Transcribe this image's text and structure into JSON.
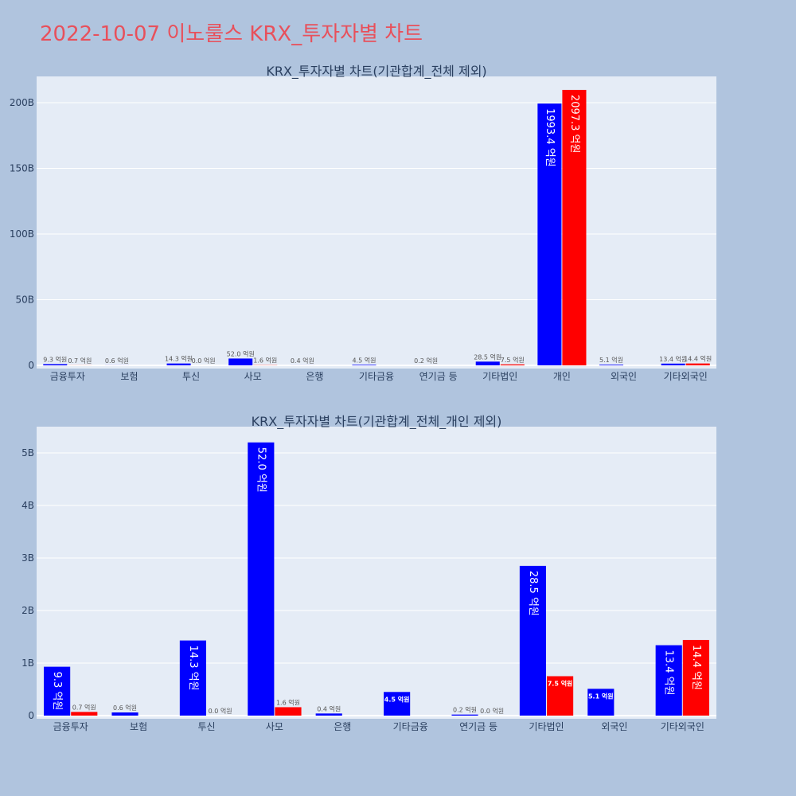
{
  "page": {
    "title": "2022-10-07 이노룰스 KRX_투자자별 차트"
  },
  "colors": {
    "background": "#b0c4de",
    "plot_bg": "#e5ecf6",
    "buy": "#0000ff",
    "sell": "#ff0000",
    "title": "#e8505b"
  },
  "chart_data": [
    {
      "type": "bar",
      "title": "KRX_투자자별 차트(기관합계_전체 제외)",
      "categories": [
        "금융투자",
        "보험",
        "투신",
        "사모",
        "은행",
        "기타금융",
        "연기금 등",
        "기타법인",
        "개인",
        "외국인",
        "기타외국인"
      ],
      "series": [
        {
          "color": "#0000ff",
          "values": [
            0.93,
            0.06,
            1.43,
            5.2,
            0.04,
            0.45,
            0.02,
            2.85,
            199.34,
            0.51,
            1.34
          ],
          "labels": [
            "9.3 억원",
            "0.6 억원",
            "14.3 억원",
            "52.0 억원",
            "0.4 억원",
            "4.5 억원",
            "0.2 억원",
            "28.5 억원",
            "1993.4 억원",
            "5.1 억원",
            "13.4 억원"
          ]
        },
        {
          "color": "#ff0000",
          "values": [
            0.07,
            null,
            0.0,
            0.16,
            null,
            null,
            null,
            0.75,
            209.73,
            null,
            1.44
          ],
          "labels": [
            "0.7 억원",
            "",
            "0.0 억원",
            "1.6 억원",
            "",
            "",
            "",
            "7.5 억원",
            "2097.3 억원",
            "",
            "14.4 억원"
          ]
        }
      ],
      "ylim": [
        0,
        220
      ],
      "yticks": [
        0,
        50,
        100,
        150,
        200
      ],
      "ytick_labels": [
        "0",
        "50B",
        "100B",
        "150B",
        "200B"
      ],
      "grid": true
    },
    {
      "type": "bar",
      "title": "KRX_투자자별 차트(기관합계_전체_개인 제외)",
      "categories": [
        "금융투자",
        "보험",
        "투신",
        "사모",
        "은행",
        "기타금융",
        "연기금 등",
        "기타법인",
        "외국인",
        "기타외국인"
      ],
      "series": [
        {
          "color": "#0000ff",
          "values": [
            0.93,
            0.06,
            1.43,
            5.2,
            0.04,
            0.45,
            0.02,
            2.85,
            0.51,
            1.34
          ],
          "labels": [
            "9.3 억원",
            "0.6 억원",
            "14.3 억원",
            "52.0 억원",
            "0.4 억원",
            "4.5 억원",
            "0.2 억원",
            "28.5 억원",
            "5.1 억원",
            "13.4 억원"
          ]
        },
        {
          "color": "#ff0000",
          "values": [
            0.07,
            null,
            0.0,
            0.16,
            null,
            null,
            0.0,
            0.75,
            null,
            1.44
          ],
          "labels": [
            "0.7 억원",
            "",
            "0.0 억원",
            "1.6 억원",
            "",
            "",
            "0.0 억원",
            "7.5 억원",
            "",
            "14.4 억원"
          ]
        }
      ],
      "ylim": [
        0,
        5.5
      ],
      "yticks": [
        0,
        1,
        2,
        3,
        4,
        5
      ],
      "ytick_labels": [
        "0",
        "1B",
        "2B",
        "3B",
        "4B",
        "5B"
      ],
      "grid": true
    }
  ]
}
